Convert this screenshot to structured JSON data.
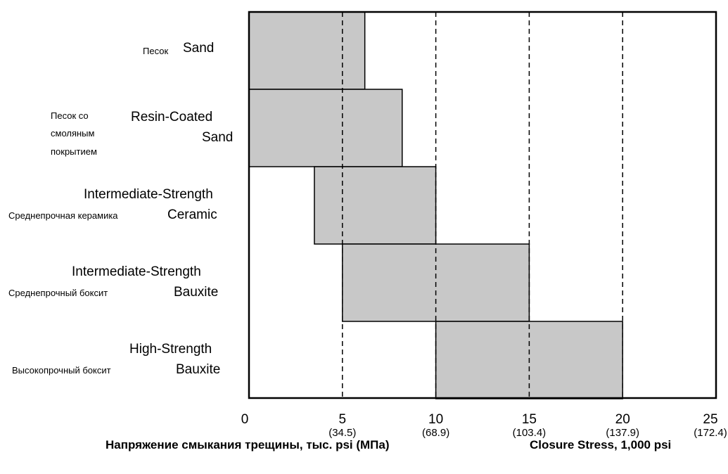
{
  "chart_data": {
    "type": "bar",
    "subtype": "floating-range-horizontal",
    "categories": [
      {
        "en": [
          "Sand"
        ],
        "ru": [
          "Песок"
        ]
      },
      {
        "en": [
          "Resin-Coated",
          "Sand"
        ],
        "ru": [
          "Песок со",
          "смоляным",
          "покрытием"
        ]
      },
      {
        "en": [
          "Intermediate-Strength",
          "Ceramic"
        ],
        "ru": [
          "Среднепрочная керамика"
        ]
      },
      {
        "en": [
          "Intermediate-Strength",
          "Bauxite"
        ],
        "ru": [
          "Среднепрочный боксит"
        ]
      },
      {
        "en": [
          "High-Strength",
          "Bauxite"
        ],
        "ru": [
          "Высокопрочный боксит"
        ]
      }
    ],
    "ranges": [
      [
        0,
        6.2
      ],
      [
        0,
        8.2
      ],
      [
        3.5,
        10
      ],
      [
        5,
        15
      ],
      [
        10,
        20
      ]
    ],
    "xlim": [
      0,
      25
    ],
    "ticks": [
      {
        "value": "0",
        "sub": ""
      },
      {
        "value": "5",
        "sub": "(34.5)"
      },
      {
        "value": "10",
        "sub": "(68.9)"
      },
      {
        "value": "15",
        "sub": "(103.4)"
      },
      {
        "value": "20",
        "sub": "(137.9)"
      },
      {
        "value": "25",
        "sub": "(172.4)"
      }
    ],
    "gridlines": [
      5,
      10,
      15,
      20
    ],
    "xlabel_ru": "Напряжение  смыкания трещины, тыс. psi  (МПа)",
    "xlabel_en": "Closure Stress, 1,000 psi",
    "bar_color": "#c8c8c8",
    "grid_style": "dashed"
  }
}
